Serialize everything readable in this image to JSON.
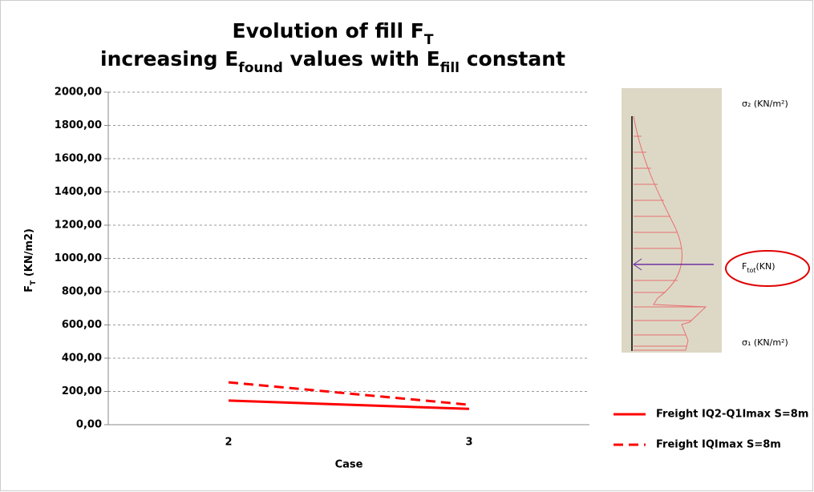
{
  "chart_data": {
    "type": "line",
    "title": [
      [
        "Evolution of fill F",
        "T"
      ],
      [
        "increasing E",
        "found",
        " values with E",
        "fill",
        " constant"
      ]
    ],
    "y_label": [
      "F",
      "T",
      " (KN/m2)"
    ],
    "x_label": "Case",
    "categories": [
      "2",
      "3"
    ],
    "series": [
      {
        "name": "Freight IQ2-Q1Imax S=8m",
        "color": "#ff0000",
        "dashed": false,
        "values": [
          145,
          95
        ]
      },
      {
        "name": "Freight IQImax S=8m",
        "color": "#ff0000",
        "dashed": true,
        "values": [
          255,
          120
        ]
      }
    ],
    "ylim": [
      0,
      2000
    ],
    "yticks": [
      {
        "value": 0,
        "label": "0,00"
      },
      {
        "value": 200,
        "label": "200,00"
      },
      {
        "value": 400,
        "label": "400,00"
      },
      {
        "value": 600,
        "label": "600,00"
      },
      {
        "value": 800,
        "label": "800,00"
      },
      {
        "value": 1000,
        "label": "1000,00"
      },
      {
        "value": 1200,
        "label": "1200,00"
      },
      {
        "value": 1400,
        "label": "1400,00"
      },
      {
        "value": 1600,
        "label": "1600,00"
      },
      {
        "value": 1800,
        "label": "1800,00"
      },
      {
        "value": 2000,
        "label": "2000,00"
      }
    ],
    "grid": true,
    "legend": "bottom-right",
    "annotations": {
      "sigma2": "σ₂ (KN/m²)",
      "sigma1": "σ₁ (KN/m²)",
      "ftot": [
        "F",
        "tot",
        "(KN)"
      ]
    }
  }
}
